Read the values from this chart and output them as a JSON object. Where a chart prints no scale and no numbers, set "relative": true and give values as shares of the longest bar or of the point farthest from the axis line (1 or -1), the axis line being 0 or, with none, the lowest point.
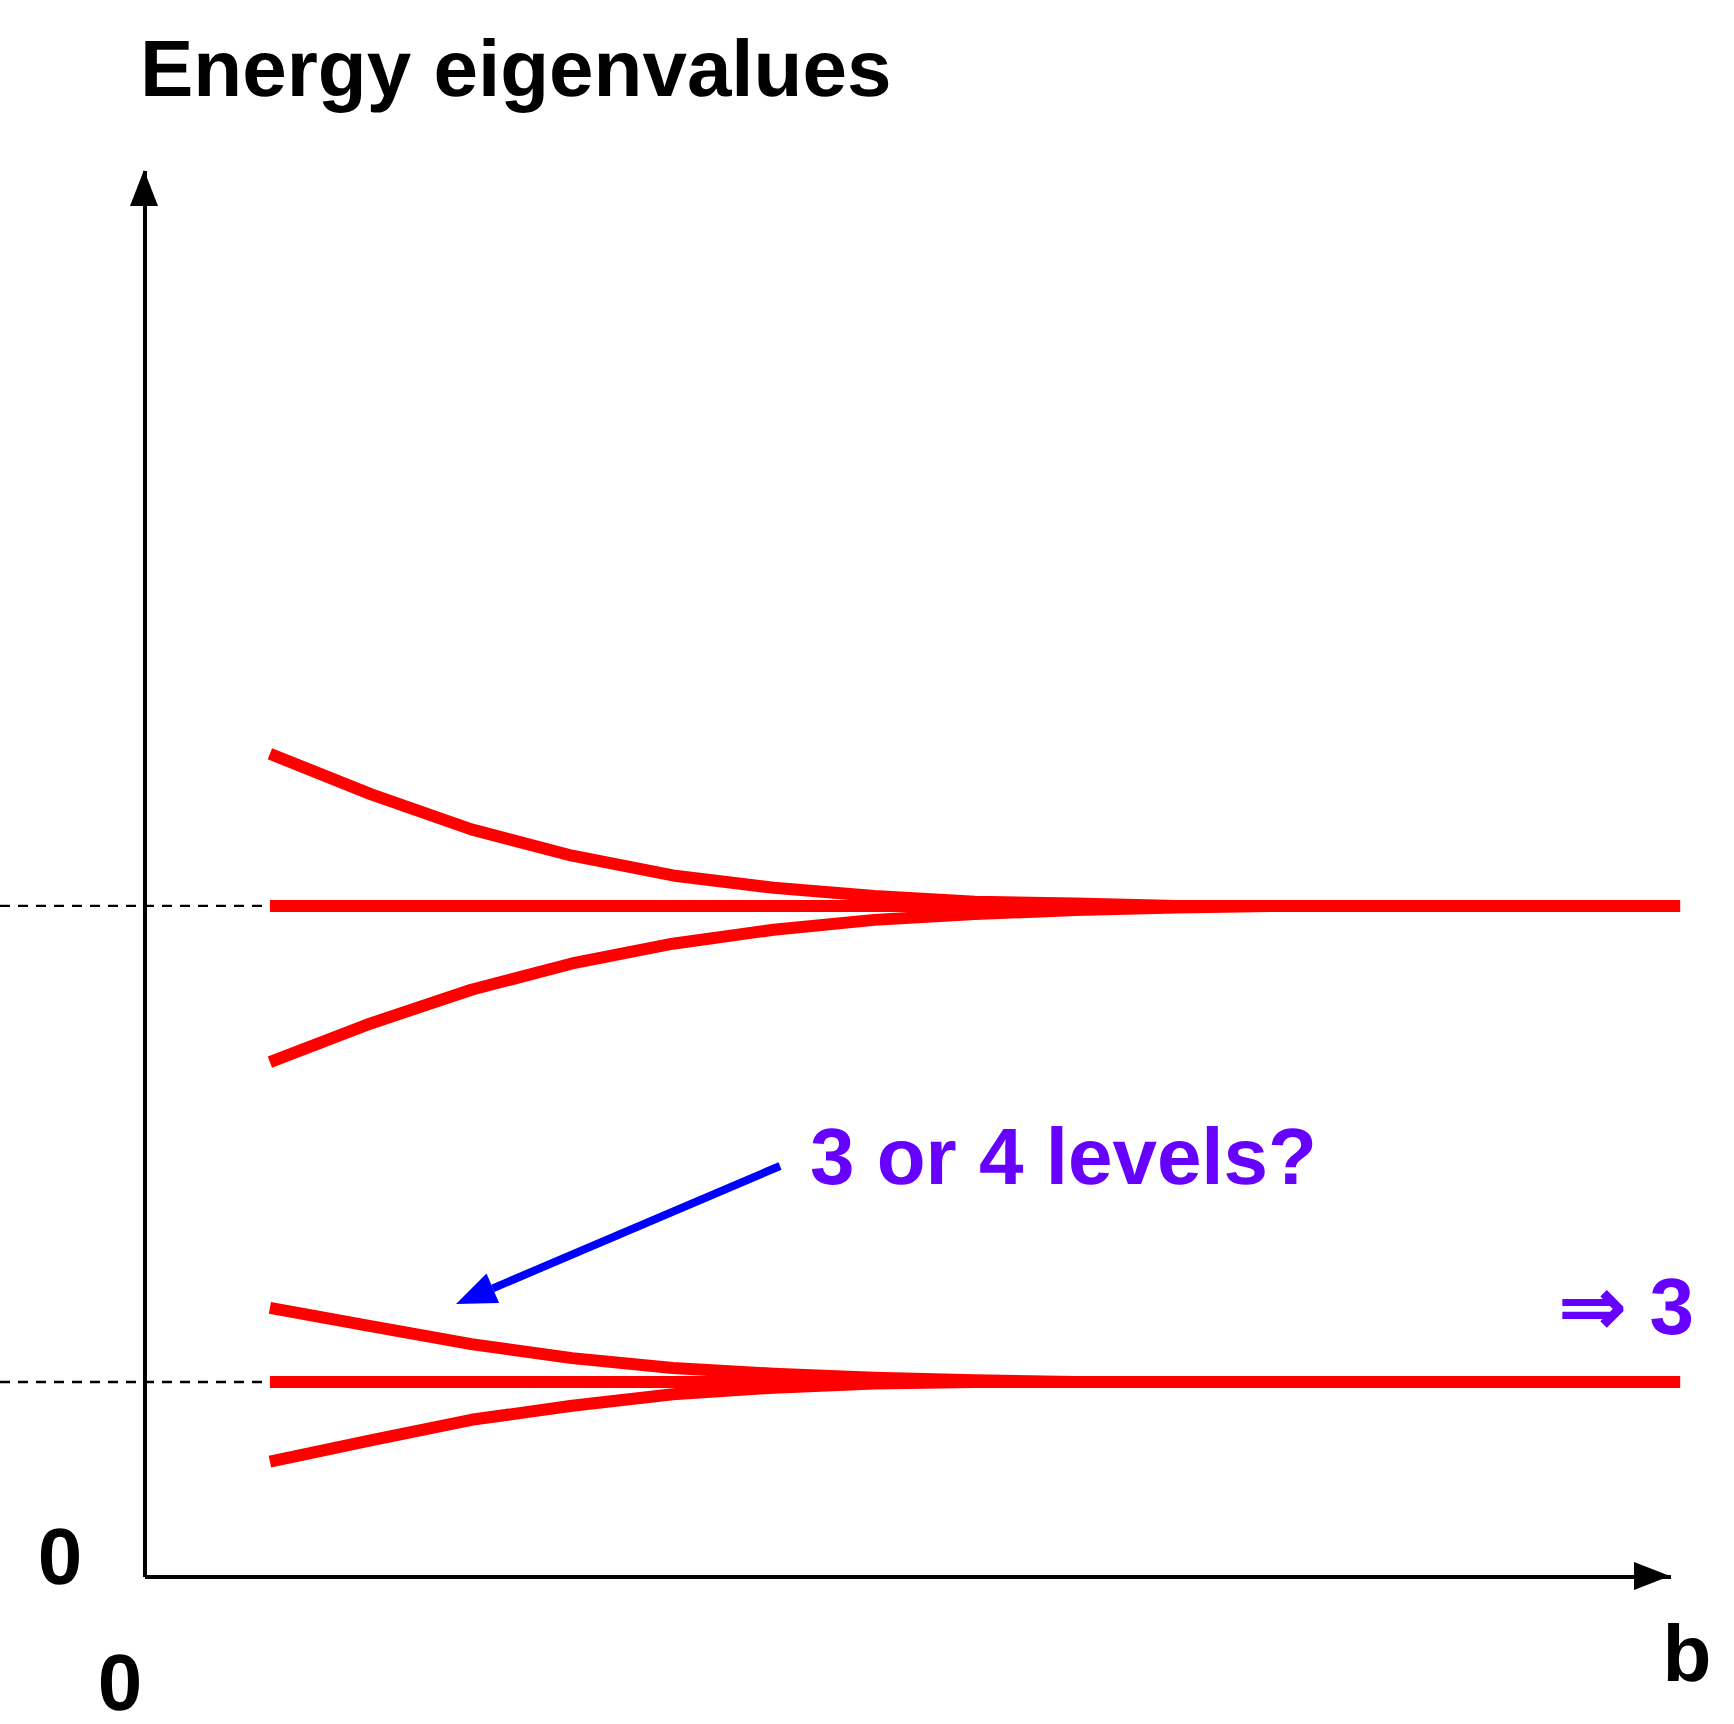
{
  "chart_data": {
    "type": "line",
    "title": "Energy eigenvalues",
    "xlabel": "b",
    "relative": true,
    "line_style": "solid",
    "marker": "none",
    "categories": [
      null,
      null,
      null,
      null,
      null,
      null,
      null,
      null,
      null,
      null,
      null,
      null,
      null,
      null,
      null
    ],
    "series": [
      {
        "color": "#ff0000",
        "values": [
          1,
          0.951,
          0.908,
          0.876,
          0.852,
          0.837,
          0.827,
          0.82,
          0.818,
          0.815,
          0.815,
          0.815,
          0.815,
          0.815,
          0.815
        ]
      },
      {
        "color": "#ff0000",
        "values": [
          0.815,
          0.815,
          0.815,
          0.815,
          0.815,
          0.815,
          0.815,
          0.815,
          0.815,
          0.815,
          0.815,
          0.815,
          0.815,
          0.815,
          0.815
        ]
      },
      {
        "color": "#ff0000",
        "values": [
          0.625,
          0.672,
          0.713,
          0.745,
          0.769,
          0.786,
          0.798,
          0.805,
          0.81,
          0.813,
          0.815,
          0.815,
          0.815,
          0.815,
          0.815
        ]
      },
      {
        "color": "#ff0000",
        "values": [
          0.326,
          0.304,
          0.282,
          0.265,
          0.253,
          0.246,
          0.241,
          0.238,
          0.236,
          0.236,
          0.236,
          0.236,
          0.236,
          0.236,
          0.236
        ]
      },
      {
        "color": "#ff0000",
        "values": [
          0.236,
          0.236,
          0.236,
          0.236,
          0.236,
          0.236,
          0.236,
          0.236,
          0.236,
          0.236,
          0.236,
          0.236,
          0.236,
          0.236,
          0.236
        ]
      },
      {
        "color": "#ff0000",
        "values": [
          0.139,
          0.165,
          0.19,
          0.207,
          0.221,
          0.229,
          0.234,
          0.236,
          0.236,
          0.236,
          0.236,
          0.236,
          0.236,
          0.236,
          0.236
        ]
      }
    ],
    "ref_lines": [
      {
        "axis": "y",
        "value": 0.815,
        "color": "#000000",
        "line_style": "dashed"
      },
      {
        "axis": "y",
        "value": 0.236,
        "color": "#000000",
        "line_style": "dashed"
      }
    ],
    "annotations": [
      "0",
      "0",
      "3 or 4 levels?",
      "⇒ 3"
    ]
  }
}
